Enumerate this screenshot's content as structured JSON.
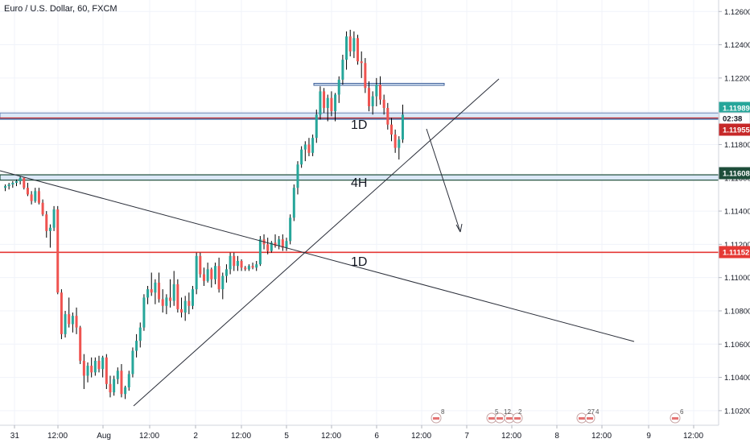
{
  "header": {
    "title": "Euro / U.S. Dollar, 60, FXCM"
  },
  "colors": {
    "up": "#26a69a",
    "down": "#ef5350",
    "wick": "#000000",
    "grid": "#f0f3fa",
    "axis_text": "#131722",
    "red_line": "#e53935",
    "dark_green_line": "#1e4d3a",
    "zone_fill": "#dbe8f7",
    "zone_border": "#3e5f99"
  },
  "chart_data": {
    "type": "candlestick",
    "symbol": "Euro / U.S. Dollar",
    "interval": "60",
    "source": "FXCM",
    "x_tick_labels": [
      "31",
      "12:00",
      "Aug",
      "12:00",
      "2",
      "12:00",
      "5",
      "12:00",
      "6",
      "12:00",
      "7",
      "12:00",
      "8",
      "12:00",
      "9",
      "12:00"
    ],
    "y_tick_labels": [
      "1.12600",
      "1.12400",
      "1.12200",
      "1.12000",
      "1.11800",
      "1.11600",
      "1.11400",
      "1.11200",
      "1.11000",
      "1.10800",
      "1.10600",
      "1.10400",
      "1.10200"
    ],
    "y_range": [
      1.1018,
      1.1264
    ],
    "price_labels": [
      {
        "text": "1.11989",
        "value": 1.11989,
        "color": "#26a69a"
      },
      {
        "text": "02:38",
        "value": 1.1197,
        "color": "#ffffff"
      },
      {
        "text": "1.11955",
        "value": 1.11955,
        "color": "#c62828"
      },
      {
        "text": "1.11608",
        "value": 1.11608,
        "color": "#1e4d3a"
      },
      {
        "text": "1.11152",
        "value": 1.11152,
        "color": "#e53935"
      }
    ],
    "annotations": [
      "1D",
      "4H",
      "1D"
    ],
    "event_markers": [
      "8",
      "5",
      "12",
      "2",
      "27",
      "4",
      "6"
    ],
    "candles": [
      [
        1.1154,
        1.1156,
        1.1152,
        1.1155
      ],
      [
        1.1155,
        1.1157,
        1.1153,
        1.1156
      ],
      [
        1.1156,
        1.1158,
        1.1154,
        1.1157
      ],
      [
        1.1157,
        1.1159,
        1.1155,
        1.1158
      ],
      [
        1.1158,
        1.1161,
        1.1156,
        1.116
      ],
      [
        1.116,
        1.116,
        1.1153,
        1.1154
      ],
      [
        1.1154,
        1.1157,
        1.1149,
        1.115
      ],
      [
        1.115,
        1.1152,
        1.1144,
        1.1146
      ],
      [
        1.1146,
        1.1154,
        1.1145,
        1.1152
      ],
      [
        1.1152,
        1.1154,
        1.1144,
        1.1145
      ],
      [
        1.1145,
        1.1147,
        1.1137,
        1.1138
      ],
      [
        1.1138,
        1.114,
        1.1124,
        1.1128
      ],
      [
        1.1128,
        1.1132,
        1.1118,
        1.113
      ],
      [
        1.113,
        1.1143,
        1.1128,
        1.1141
      ],
      [
        1.1141,
        1.1143,
        1.109,
        1.1091
      ],
      [
        1.1091,
        1.1093,
        1.1063,
        1.1066
      ],
      [
        1.1066,
        1.108,
        1.1064,
        1.1078
      ],
      [
        1.1078,
        1.1088,
        1.107,
        1.1072
      ],
      [
        1.1072,
        1.1079,
        1.1067,
        1.1077
      ],
      [
        1.1077,
        1.1082,
        1.1066,
        1.107
      ],
      [
        1.107,
        1.1071,
        1.1048,
        1.105
      ],
      [
        1.105,
        1.1054,
        1.1033,
        1.1041
      ],
      [
        1.1041,
        1.1049,
        1.1037,
        1.1047
      ],
      [
        1.1047,
        1.1052,
        1.104,
        1.1043
      ],
      [
        1.1043,
        1.1052,
        1.1041,
        1.105
      ],
      [
        1.105,
        1.1053,
        1.1043,
        1.1045
      ],
      [
        1.1045,
        1.1053,
        1.104,
        1.1052
      ],
      [
        1.1052,
        1.1054,
        1.1033,
        1.1036
      ],
      [
        1.1036,
        1.1041,
        1.1028,
        1.1031
      ],
      [
        1.1031,
        1.1041,
        1.1029,
        1.1039
      ],
      [
        1.1039,
        1.1046,
        1.1036,
        1.1044
      ],
      [
        1.1044,
        1.1048,
        1.1028,
        1.103
      ],
      [
        1.103,
        1.1035,
        1.1027,
        1.1034
      ],
      [
        1.1034,
        1.1044,
        1.1032,
        1.1042
      ],
      [
        1.1042,
        1.1058,
        1.104,
        1.1056
      ],
      [
        1.1056,
        1.1066,
        1.1052,
        1.1062
      ],
      [
        1.1062,
        1.1073,
        1.1058,
        1.107
      ],
      [
        1.107,
        1.109,
        1.1068,
        1.1088
      ],
      [
        1.1088,
        1.1095,
        1.1084,
        1.1093
      ],
      [
        1.1093,
        1.1103,
        1.1089,
        1.1091
      ],
      [
        1.1091,
        1.1099,
        1.1084,
        1.1097
      ],
      [
        1.1097,
        1.1103,
        1.1085,
        1.1087
      ],
      [
        1.1087,
        1.1093,
        1.1079,
        1.1083
      ],
      [
        1.1083,
        1.109,
        1.1078,
        1.1088
      ],
      [
        1.1088,
        1.1099,
        1.1082,
        1.1086
      ],
      [
        1.1086,
        1.1104,
        1.1083,
        1.1096
      ],
      [
        1.1096,
        1.1099,
        1.1079,
        1.1081
      ],
      [
        1.1081,
        1.1088,
        1.1076,
        1.1079
      ],
      [
        1.1079,
        1.1089,
        1.1074,
        1.1086
      ],
      [
        1.1086,
        1.1091,
        1.1078,
        1.1083
      ],
      [
        1.1083,
        1.1095,
        1.1081,
        1.1093
      ],
      [
        1.1093,
        1.1115,
        1.109,
        1.1113
      ],
      [
        1.1113,
        1.1115,
        1.11,
        1.1102
      ],
      [
        1.1102,
        1.1106,
        1.1095,
        1.1098
      ],
      [
        1.1098,
        1.1109,
        1.1097,
        1.1105
      ],
      [
        1.1105,
        1.1106,
        1.1094,
        1.1099
      ],
      [
        1.1099,
        1.1109,
        1.1096,
        1.1107
      ],
      [
        1.1107,
        1.1112,
        1.1091,
        1.1093
      ],
      [
        1.1093,
        1.1103,
        1.1087,
        1.1101
      ],
      [
        1.1101,
        1.1108,
        1.1097,
        1.1105
      ],
      [
        1.1105,
        1.1115,
        1.1102,
        1.1113
      ],
      [
        1.1113,
        1.1115,
        1.1104,
        1.1107
      ],
      [
        1.1107,
        1.1113,
        1.1104,
        1.111
      ],
      [
        1.111,
        1.1111,
        1.1104,
        1.1106
      ],
      [
        1.1106,
        1.1107,
        1.1104,
        1.1105
      ],
      [
        1.1105,
        1.1108,
        1.1104,
        1.1107
      ],
      [
        1.1107,
        1.1109,
        1.1105,
        1.1106
      ],
      [
        1.1106,
        1.111,
        1.1104,
        1.1108
      ],
      [
        1.1108,
        1.1125,
        1.1107,
        1.1123
      ],
      [
        1.1123,
        1.1126,
        1.1117,
        1.112
      ],
      [
        1.112,
        1.1124,
        1.1114,
        1.1116
      ],
      [
        1.1116,
        1.1122,
        1.1115,
        1.1121
      ],
      [
        1.1121,
        1.1126,
        1.1118,
        1.1119
      ],
      [
        1.1119,
        1.1125,
        1.1117,
        1.1123
      ],
      [
        1.1123,
        1.1126,
        1.1116,
        1.1118
      ],
      [
        1.1118,
        1.1124,
        1.1116,
        1.1122
      ],
      [
        1.1122,
        1.1138,
        1.112,
        1.1136
      ],
      [
        1.1136,
        1.1156,
        1.1134,
        1.1154
      ],
      [
        1.1154,
        1.117,
        1.115,
        1.1168
      ],
      [
        1.1168,
        1.1179,
        1.1166,
        1.1177
      ],
      [
        1.1177,
        1.1182,
        1.117,
        1.118
      ],
      [
        1.118,
        1.1184,
        1.1173,
        1.1175
      ],
      [
        1.1175,
        1.1186,
        1.1173,
        1.1184
      ],
      [
        1.1184,
        1.1201,
        1.1181,
        1.1198
      ],
      [
        1.1198,
        1.1215,
        1.1195,
        1.1212
      ],
      [
        1.1212,
        1.1214,
        1.1199,
        1.1202
      ],
      [
        1.1202,
        1.121,
        1.1194,
        1.1208
      ],
      [
        1.1208,
        1.1212,
        1.1197,
        1.12
      ],
      [
        1.12,
        1.1211,
        1.1194,
        1.121
      ],
      [
        1.121,
        1.1221,
        1.1205,
        1.1219
      ],
      [
        1.1219,
        1.1234,
        1.1216,
        1.1231
      ],
      [
        1.1231,
        1.1248,
        1.1225,
        1.1245
      ],
      [
        1.1245,
        1.1249,
        1.1233,
        1.1236
      ],
      [
        1.1236,
        1.1248,
        1.1232,
        1.1244
      ],
      [
        1.1244,
        1.1246,
        1.1228,
        1.123
      ],
      [
        1.123,
        1.1236,
        1.122,
        1.1229
      ],
      [
        1.1229,
        1.1232,
        1.1211,
        1.1214
      ],
      [
        1.1214,
        1.1218,
        1.12,
        1.1203
      ],
      [
        1.1203,
        1.1212,
        1.1198,
        1.1209
      ],
      [
        1.1209,
        1.122,
        1.1203,
        1.1216
      ],
      [
        1.1216,
        1.1221,
        1.1204,
        1.1207
      ],
      [
        1.1207,
        1.121,
        1.1198,
        1.1202
      ],
      [
        1.1202,
        1.1205,
        1.1189,
        1.1192
      ],
      [
        1.1192,
        1.1196,
        1.1182,
        1.1186
      ],
      [
        1.1186,
        1.1189,
        1.1175,
        1.1178
      ],
      [
        1.1178,
        1.1185,
        1.1171,
        1.1183
      ],
      [
        1.1183,
        1.1204,
        1.1181,
        1.1198
      ]
    ]
  }
}
